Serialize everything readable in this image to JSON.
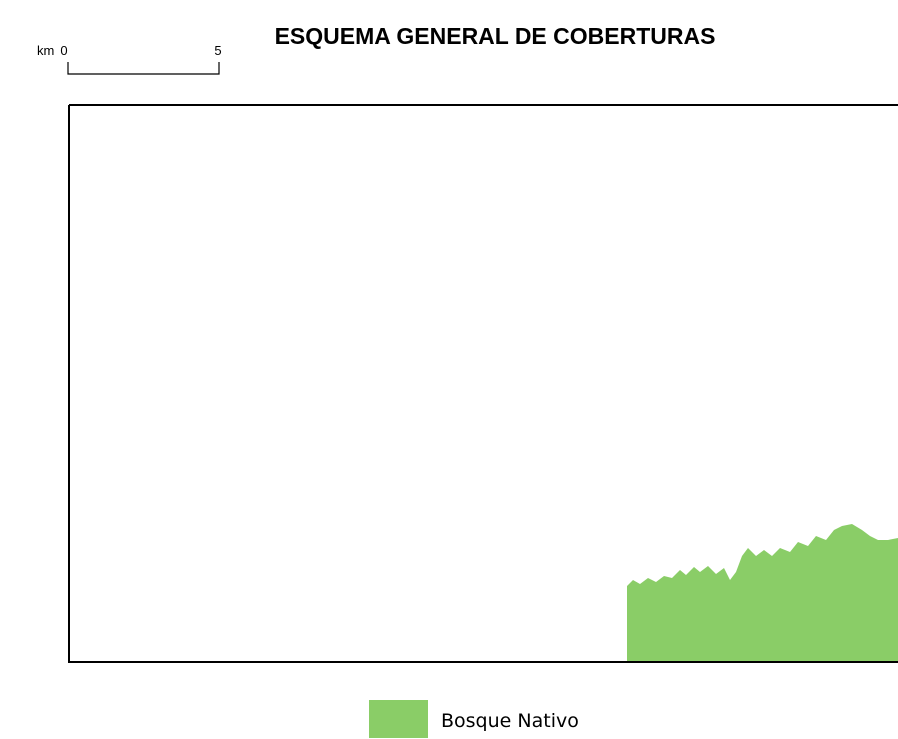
{
  "title": "ESQUEMA GENERAL DE COBERTURAS",
  "scale_bar": {
    "unit": "km",
    "labels": [
      "0",
      "5"
    ]
  },
  "legend": [
    {
      "label": "Bosque Nativo",
      "color": "#8acd67"
    }
  ]
}
